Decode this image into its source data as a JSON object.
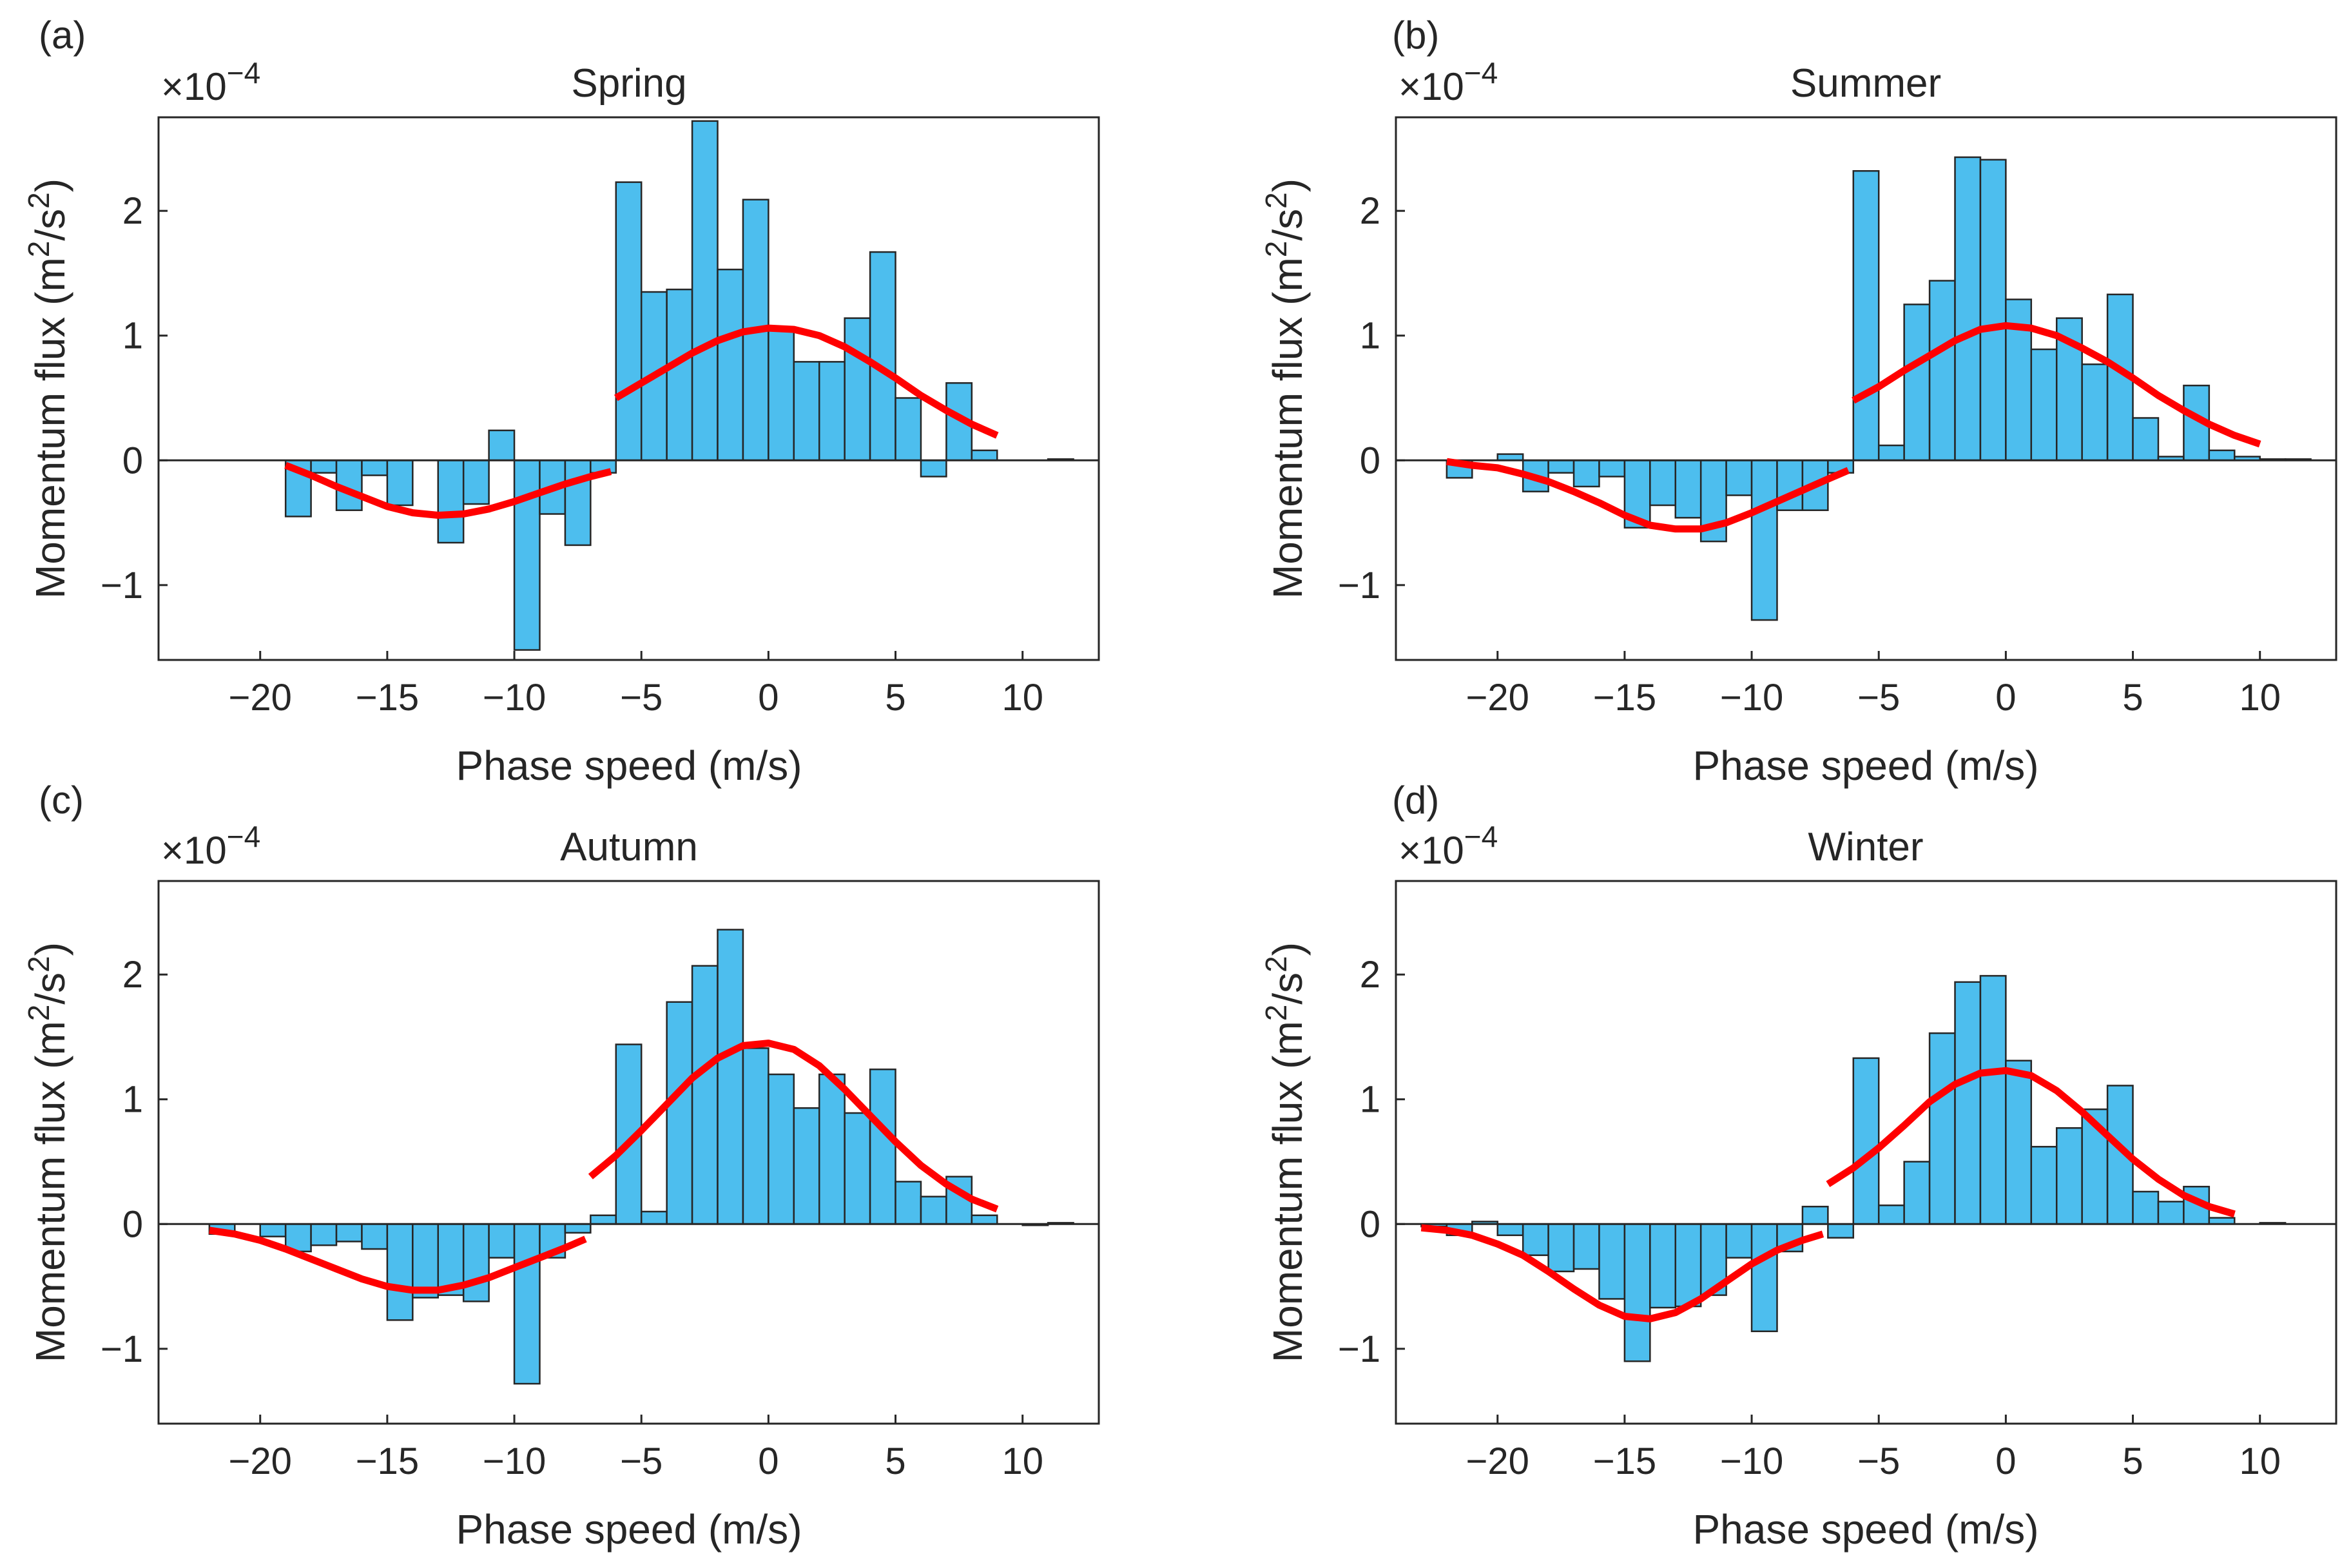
{
  "colors": {
    "bar_fill": "#4DBEEE",
    "bar_edge": "#262626",
    "fit_line": "#FF0000",
    "axis": "#262626"
  },
  "xlabel": "Phase speed (m/s)",
  "ylabel": "Momentum flux (m",
  "ylabel_sup1": "2",
  "ylabel_mid": "/s",
  "ylabel_sup2": "2",
  "ylabel_end": ")",
  "exponent_base": "×10",
  "exponent_power": "−4",
  "chart_data": [
    {
      "type": "bar",
      "panel_label": "(a)",
      "title": "Spring",
      "xlim": [
        -24,
        13
      ],
      "ylim": [
        -1.6,
        2.75
      ],
      "xticks": [
        -20,
        -15,
        -10,
        -5,
        0,
        5,
        10
      ],
      "xtick_labels": [
        "−20",
        "−15",
        "−10",
        "−5",
        "0",
        "5",
        "10"
      ],
      "yticks": [
        -1,
        0,
        1,
        2
      ],
      "ytick_labels": [
        "−1",
        "0",
        "1",
        "2"
      ],
      "bin_width": 1,
      "centers": [
        -18.5,
        -17.5,
        -16.5,
        -15.5,
        -14.5,
        -13.5,
        -12.5,
        -11.5,
        -10.5,
        -9.5,
        -8.5,
        -7.5,
        -6.5,
        -5.5,
        -4.5,
        -3.5,
        -2.5,
        -1.5,
        -0.5,
        0.5,
        1.5,
        2.5,
        3.5,
        4.5,
        5.5,
        6.5,
        7.5,
        8.5,
        11.5
      ],
      "values": [
        -0.45,
        -0.1,
        -0.4,
        -0.12,
        -0.36,
        0,
        -0.66,
        -0.35,
        0.24,
        -1.52,
        -0.43,
        -0.68,
        -0.1,
        2.23,
        1.35,
        1.37,
        2.72,
        1.53,
        2.09,
        1.04,
        0.79,
        0.79,
        1.14,
        1.67,
        0.5,
        -0.13,
        0.62,
        0.08,
        0.01
      ],
      "fit_segments": [
        {
          "x": [
            -19,
            -18,
            -17,
            -16,
            -15,
            -14,
            -13,
            -12,
            -11,
            -10,
            -9,
            -8,
            -7,
            -6.2
          ],
          "y": [
            -0.04,
            -0.12,
            -0.21,
            -0.29,
            -0.37,
            -0.42,
            -0.44,
            -0.43,
            -0.39,
            -0.33,
            -0.26,
            -0.19,
            -0.13,
            -0.09
          ]
        },
        {
          "x": [
            -6,
            -5,
            -4,
            -3,
            -2,
            -1,
            0,
            1,
            2,
            3,
            4,
            5,
            6,
            7,
            8,
            9
          ],
          "y": [
            0.5,
            0.62,
            0.74,
            0.86,
            0.96,
            1.03,
            1.06,
            1.05,
            1.0,
            0.91,
            0.79,
            0.66,
            0.52,
            0.4,
            0.29,
            0.2
          ]
        }
      ]
    },
    {
      "type": "bar",
      "panel_label": "(b)",
      "title": "Summer",
      "xlim": [
        -24,
        13
      ],
      "ylim": [
        -1.6,
        2.75
      ],
      "xticks": [
        -20,
        -15,
        -10,
        -5,
        0,
        5,
        10
      ],
      "xtick_labels": [
        "−20",
        "−15",
        "−10",
        "−5",
        "0",
        "5",
        "10"
      ],
      "yticks": [
        -1,
        0,
        1,
        2
      ],
      "ytick_labels": [
        "−1",
        "0",
        "1",
        "2"
      ],
      "bin_width": 1,
      "centers": [
        -21.5,
        -20.5,
        -19.5,
        -18.5,
        -17.5,
        -16.5,
        -15.5,
        -14.5,
        -13.5,
        -12.5,
        -11.5,
        -10.5,
        -9.5,
        -8.5,
        -7.5,
        -6.5,
        -5.5,
        -4.5,
        -3.5,
        -2.5,
        -1.5,
        -0.5,
        0.5,
        1.5,
        2.5,
        3.5,
        4.5,
        5.5,
        6.5,
        7.5,
        8.5,
        9.5,
        10.5,
        11.5
      ],
      "values": [
        -0.14,
        0,
        0.05,
        -0.25,
        -0.1,
        -0.21,
        -0.13,
        -0.54,
        -0.36,
        -0.46,
        -0.65,
        -0.28,
        -1.28,
        -0.4,
        -0.4,
        -0.1,
        2.32,
        0.12,
        1.25,
        1.44,
        2.43,
        2.41,
        1.29,
        0.89,
        1.14,
        0.77,
        1.33,
        0.34,
        0.03,
        0.6,
        0.08,
        0.03,
        0.01,
        0.01
      ],
      "fit_segments": [
        {
          "x": [
            -22,
            -21,
            -20,
            -19,
            -18,
            -17,
            -16,
            -15,
            -14,
            -13,
            -12,
            -11,
            -10,
            -9,
            -8,
            -7,
            -6.2
          ],
          "y": [
            -0.01,
            -0.04,
            -0.06,
            -0.11,
            -0.17,
            -0.25,
            -0.34,
            -0.44,
            -0.52,
            -0.55,
            -0.55,
            -0.5,
            -0.42,
            -0.33,
            -0.24,
            -0.15,
            -0.08
          ]
        },
        {
          "x": [
            -6,
            -5,
            -4,
            -3,
            -2,
            -1,
            0,
            1,
            2,
            3,
            4,
            5,
            6,
            7,
            8,
            9,
            10
          ],
          "y": [
            0.48,
            0.59,
            0.72,
            0.84,
            0.96,
            1.05,
            1.08,
            1.06,
            1.0,
            0.9,
            0.79,
            0.66,
            0.52,
            0.4,
            0.29,
            0.2,
            0.13
          ]
        }
      ]
    },
    {
      "type": "bar",
      "panel_label": "(c)",
      "title": "Autumn",
      "xlim": [
        -24,
        13
      ],
      "ylim": [
        -1.6,
        2.75
      ],
      "xticks": [
        -20,
        -15,
        -10,
        -5,
        0,
        5,
        10
      ],
      "xtick_labels": [
        "−20",
        "−15",
        "−10",
        "−5",
        "0",
        "5",
        "10"
      ],
      "yticks": [
        -1,
        0,
        1,
        2
      ],
      "ytick_labels": [
        "−1",
        "0",
        "1",
        "2"
      ],
      "bin_width": 1,
      "centers": [
        -21.5,
        -20.5,
        -19.5,
        -18.5,
        -17.5,
        -16.5,
        -15.5,
        -14.5,
        -13.5,
        -12.5,
        -11.5,
        -10.5,
        -9.5,
        -8.5,
        -7.5,
        -6.5,
        -5.5,
        -4.5,
        -3.5,
        -2.5,
        -1.5,
        -0.5,
        0.5,
        1.5,
        2.5,
        3.5,
        4.5,
        5.5,
        6.5,
        7.5,
        8.5,
        9.5,
        10.5,
        11.5
      ],
      "values": [
        -0.08,
        0,
        -0.1,
        -0.22,
        -0.17,
        -0.14,
        -0.2,
        -0.77,
        -0.59,
        -0.57,
        -0.62,
        -0.27,
        -1.28,
        -0.27,
        -0.07,
        0.07,
        1.44,
        0.1,
        1.78,
        2.07,
        2.36,
        1.41,
        1.2,
        0.93,
        1.2,
        0.89,
        1.24,
        0.34,
        0.22,
        0.38,
        0.07,
        0,
        -0.01,
        0.01
      ],
      "fit_segments": [
        {
          "x": [
            -22,
            -21,
            -20,
            -19,
            -18,
            -17,
            -16,
            -15,
            -14,
            -13,
            -12,
            -11,
            -10,
            -9,
            -8,
            -7.2
          ],
          "y": [
            -0.05,
            -0.08,
            -0.13,
            -0.2,
            -0.28,
            -0.36,
            -0.44,
            -0.5,
            -0.53,
            -0.53,
            -0.49,
            -0.43,
            -0.35,
            -0.27,
            -0.19,
            -0.12
          ]
        },
        {
          "x": [
            -7,
            -6,
            -5,
            -4,
            -3,
            -2,
            -1,
            0,
            1,
            2,
            3,
            4,
            5,
            6,
            7,
            8,
            9
          ],
          "y": [
            0.38,
            0.55,
            0.75,
            0.96,
            1.17,
            1.33,
            1.43,
            1.45,
            1.4,
            1.27,
            1.08,
            0.87,
            0.66,
            0.47,
            0.32,
            0.2,
            0.12
          ]
        }
      ]
    },
    {
      "type": "bar",
      "panel_label": "(d)",
      "title": "Winter",
      "xlim": [
        -24,
        13
      ],
      "ylim": [
        -1.6,
        2.75
      ],
      "xticks": [
        -20,
        -15,
        -10,
        -5,
        0,
        5,
        10
      ],
      "xtick_labels": [
        "−20",
        "−15",
        "−10",
        "−5",
        "0",
        "5",
        "10"
      ],
      "yticks": [
        -1,
        0,
        1,
        2
      ],
      "ytick_labels": [
        "−1",
        "0",
        "1",
        "2"
      ],
      "bin_width": 1,
      "centers": [
        -22.5,
        -21.5,
        -20.5,
        -19.5,
        -18.5,
        -17.5,
        -16.5,
        -15.5,
        -14.5,
        -13.5,
        -12.5,
        -11.5,
        -10.5,
        -9.5,
        -8.5,
        -7.5,
        -6.5,
        -5.5,
        -4.5,
        -3.5,
        -2.5,
        -1.5,
        -0.5,
        0.5,
        1.5,
        2.5,
        3.5,
        4.5,
        5.5,
        6.5,
        7.5,
        8.5,
        9.5,
        10.5,
        11.5
      ],
      "values": [
        -0.02,
        -0.09,
        0.02,
        -0.09,
        -0.25,
        -0.38,
        -0.36,
        -0.6,
        -1.1,
        -0.67,
        -0.66,
        -0.57,
        -0.27,
        -0.86,
        -0.22,
        0.14,
        -0.11,
        1.33,
        0.15,
        0.5,
        1.53,
        1.94,
        1.99,
        1.31,
        0.62,
        0.77,
        0.92,
        1.11,
        0.26,
        0.18,
        0.3,
        0.05,
        0,
        0.01,
        0
      ],
      "fit_segments": [
        {
          "x": [
            -23,
            -22,
            -21,
            -20,
            -19,
            -18,
            -17,
            -16,
            -15,
            -14,
            -13,
            -12,
            -11,
            -10,
            -9,
            -8,
            -7.2
          ],
          "y": [
            -0.03,
            -0.05,
            -0.09,
            -0.16,
            -0.25,
            -0.38,
            -0.52,
            -0.65,
            -0.74,
            -0.76,
            -0.71,
            -0.6,
            -0.46,
            -0.32,
            -0.21,
            -0.13,
            -0.08
          ]
        },
        {
          "x": [
            -7,
            -6,
            -5,
            -4,
            -3,
            -2,
            -1,
            0,
            1,
            2,
            3,
            4,
            5,
            6,
            7,
            8,
            9
          ],
          "y": [
            0.32,
            0.45,
            0.61,
            0.79,
            0.98,
            1.12,
            1.21,
            1.23,
            1.19,
            1.07,
            0.9,
            0.71,
            0.52,
            0.36,
            0.23,
            0.14,
            0.08
          ]
        }
      ]
    }
  ]
}
